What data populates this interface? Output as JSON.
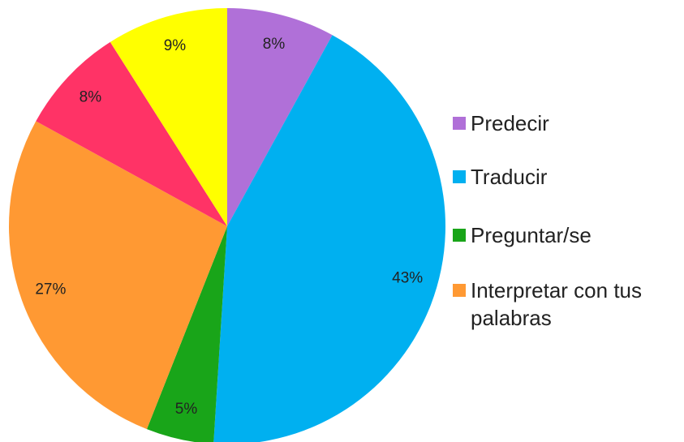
{
  "chart_data": {
    "type": "pie",
    "categories": [
      "Predecir",
      "Traducir",
      "Preguntar/se",
      "Interpretar con tus palabras",
      null,
      null
    ],
    "values": [
      8,
      43,
      5,
      27,
      8,
      9
    ],
    "value_labels": [
      "8%",
      "43%",
      "5%",
      "27%",
      "8%",
      "9%"
    ],
    "colors": [
      "#b070d8",
      "#00b0f0",
      "#19a519",
      "#ff9933",
      "#ff3366",
      "#ffff00"
    ],
    "legend": "right"
  }
}
